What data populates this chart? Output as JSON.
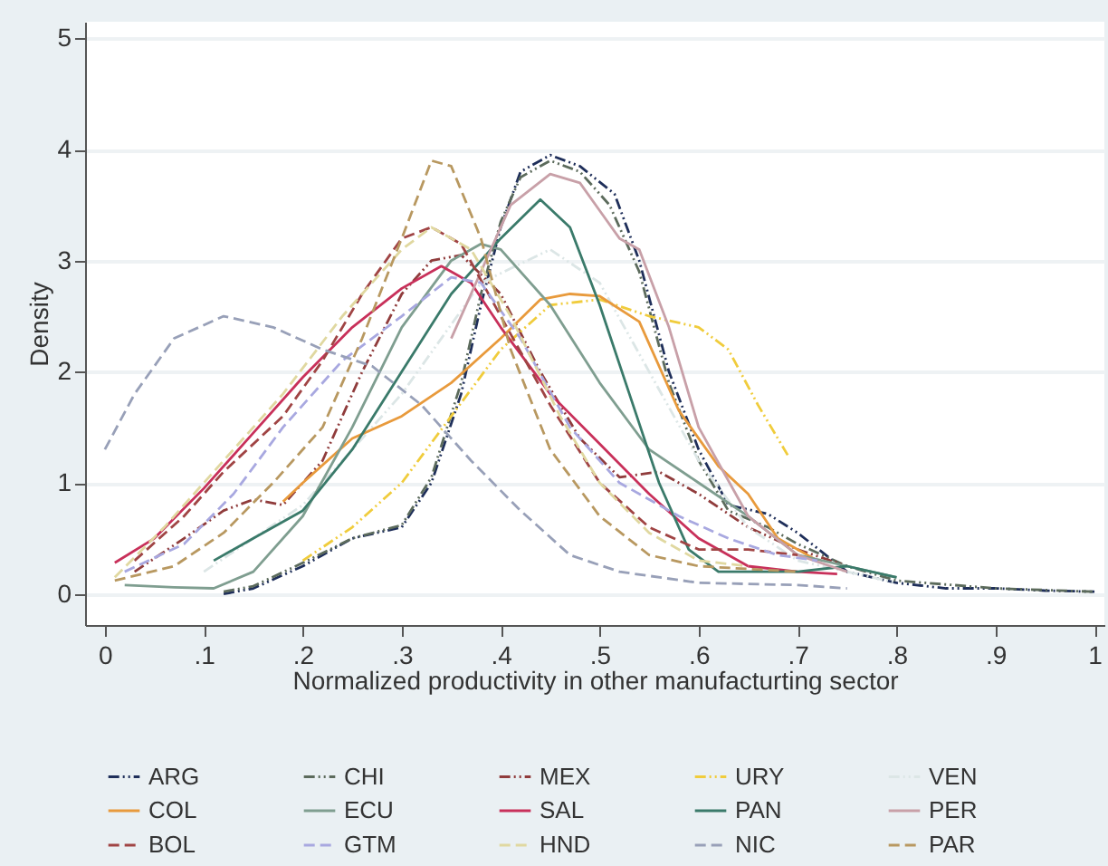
{
  "chart_data": {
    "type": "line",
    "xlabel": "Normalized productivity in other manufacturting sector",
    "ylabel": "Density",
    "xlim": [
      -0.02,
      1.01
    ],
    "ylim": [
      -0.28,
      5.15
    ],
    "xticks": [
      0,
      {
        "value": 0.1,
        "label": ".1"
      },
      {
        "value": 0.2,
        "label": ".2"
      },
      {
        "value": 0.3,
        "label": ".3"
      },
      {
        "value": 0.4,
        "label": ".4"
      },
      {
        "value": 0.5,
        "label": ".5"
      },
      {
        "value": 0.6,
        "label": ".6"
      },
      {
        "value": 0.7,
        "label": ".7"
      },
      {
        "value": 0.8,
        "label": ".8"
      },
      {
        "value": 0.9,
        "label": ".9"
      },
      1
    ],
    "yticks": [
      0,
      1,
      2,
      3,
      4,
      5
    ],
    "grid": "y",
    "legend": "bottom",
    "series": [
      {
        "name": "ARG",
        "color": "#1f2f5a",
        "line_style": "dotted",
        "x": [
          0.12,
          0.15,
          0.2,
          0.25,
          0.3,
          0.33,
          0.36,
          0.38,
          0.4,
          0.42,
          0.45,
          0.48,
          0.515,
          0.54,
          0.57,
          0.6,
          0.63,
          0.67,
          0.7,
          0.75,
          0.8,
          0.85,
          0.9,
          0.95,
          1.0
        ],
        "values": [
          0,
          0.05,
          0.25,
          0.5,
          0.6,
          1.0,
          1.8,
          2.6,
          3.3,
          3.8,
          3.95,
          3.85,
          3.6,
          3.0,
          2.0,
          1.3,
          0.8,
          0.72,
          0.55,
          0.2,
          0.1,
          0.05,
          0.05,
          0.03,
          0.02
        ]
      },
      {
        "name": "CHI",
        "color": "#5c6b5c",
        "line_style": "dotted",
        "x": [
          0.12,
          0.15,
          0.2,
          0.25,
          0.3,
          0.33,
          0.36,
          0.38,
          0.4,
          0.42,
          0.45,
          0.48,
          0.51,
          0.54,
          0.57,
          0.6,
          0.63,
          0.67,
          0.7,
          0.75,
          0.8,
          0.9,
          1.0
        ],
        "values": [
          0.02,
          0.07,
          0.28,
          0.5,
          0.62,
          1.05,
          1.9,
          2.7,
          3.35,
          3.75,
          3.9,
          3.8,
          3.5,
          2.9,
          1.9,
          1.2,
          0.75,
          0.6,
          0.45,
          0.25,
          0.12,
          0.05,
          0.02
        ]
      },
      {
        "name": "MEX",
        "color": "#903c3c",
        "line_style": "dotted",
        "x": [
          0.03,
          0.08,
          0.12,
          0.15,
          0.18,
          0.22,
          0.26,
          0.3,
          0.33,
          0.36,
          0.4,
          0.44,
          0.48,
          0.52,
          0.56,
          0.6,
          0.65,
          0.7,
          0.75
        ],
        "values": [
          0.2,
          0.5,
          0.75,
          0.85,
          0.8,
          1.2,
          2.0,
          2.7,
          3.0,
          3.05,
          2.7,
          2.0,
          1.4,
          1.05,
          1.1,
          0.9,
          0.6,
          0.4,
          0.25
        ]
      },
      {
        "name": "URY",
        "color": "#f0cc3c",
        "line_style": "dotted",
        "x": [
          0.2,
          0.25,
          0.3,
          0.35,
          0.4,
          0.45,
          0.5,
          0.55,
          0.6,
          0.63,
          0.66,
          0.69
        ],
        "values": [
          0.3,
          0.6,
          1.0,
          1.6,
          2.2,
          2.6,
          2.65,
          2.5,
          2.4,
          2.2,
          1.7,
          1.25
        ]
      },
      {
        "name": "VEN",
        "color": "#dce6e6",
        "line_style": "dotted",
        "x": [
          0.1,
          0.2,
          0.3,
          0.38,
          0.45,
          0.5,
          0.55,
          0.6,
          0.65,
          0.7,
          0.8
        ],
        "values": [
          0.2,
          0.8,
          1.8,
          2.8,
          3.1,
          2.8,
          2.0,
          1.2,
          0.6,
          0.3,
          0.1
        ]
      },
      {
        "name": "COL",
        "color": "#e89a3c",
        "line_style": "solid",
        "x": [
          0.18,
          0.2,
          0.25,
          0.3,
          0.35,
          0.4,
          0.44,
          0.47,
          0.5,
          0.54,
          0.58,
          0.62,
          0.65,
          0.68,
          0.72
        ],
        "values": [
          0.83,
          1.0,
          1.4,
          1.6,
          1.9,
          2.3,
          2.65,
          2.7,
          2.68,
          2.45,
          1.65,
          1.15,
          0.9,
          0.5,
          0.3
        ]
      },
      {
        "name": "ECU",
        "color": "#7f9e90",
        "line_style": "solid",
        "x": [
          0.02,
          0.07,
          0.11,
          0.15,
          0.2,
          0.25,
          0.3,
          0.35,
          0.38,
          0.4,
          0.45,
          0.5,
          0.55,
          0.6,
          0.65,
          0.7,
          0.75,
          0.8
        ],
        "values": [
          0.08,
          0.06,
          0.05,
          0.2,
          0.7,
          1.5,
          2.4,
          3.0,
          3.15,
          3.1,
          2.6,
          1.9,
          1.3,
          1.0,
          0.7,
          0.35,
          0.25,
          0.15
        ]
      },
      {
        "name": "SAL",
        "color": "#c8305a",
        "line_style": "solid",
        "x": [
          0.01,
          0.05,
          0.1,
          0.15,
          0.2,
          0.25,
          0.3,
          0.34,
          0.37,
          0.4,
          0.45,
          0.5,
          0.55,
          0.6,
          0.65,
          0.7,
          0.74
        ],
        "values": [
          0.28,
          0.5,
          0.95,
          1.45,
          1.95,
          2.4,
          2.75,
          2.95,
          2.8,
          2.4,
          1.8,
          1.35,
          0.9,
          0.5,
          0.25,
          0.2,
          0.18
        ]
      },
      {
        "name": "PAN",
        "color": "#3a7a6a",
        "line_style": "solid",
        "x": [
          0.11,
          0.15,
          0.2,
          0.25,
          0.3,
          0.35,
          0.4,
          0.44,
          0.47,
          0.5,
          0.53,
          0.56,
          0.59,
          0.62,
          0.7,
          0.75,
          0.8
        ],
        "values": [
          0.3,
          0.5,
          0.75,
          1.3,
          2.0,
          2.7,
          3.2,
          3.55,
          3.3,
          2.6,
          1.8,
          1.0,
          0.4,
          0.2,
          0.2,
          0.25,
          0.15
        ]
      },
      {
        "name": "PER",
        "color": "#c8a0a8",
        "line_style": "solid",
        "x": [
          0.35,
          0.38,
          0.41,
          0.45,
          0.48,
          0.5,
          0.52,
          0.54,
          0.57,
          0.6,
          0.65,
          0.7,
          0.75
        ],
        "values": [
          2.3,
          2.9,
          3.5,
          3.78,
          3.7,
          3.45,
          3.2,
          3.1,
          2.4,
          1.5,
          0.7,
          0.35,
          0.2
        ]
      },
      {
        "name": "BOL",
        "color": "#a04444",
        "line_style": "dashed",
        "x": [
          0.03,
          0.08,
          0.12,
          0.18,
          0.22,
          0.26,
          0.3,
          0.33,
          0.36,
          0.4,
          0.45,
          0.5,
          0.55,
          0.6,
          0.65,
          0.7
        ],
        "values": [
          0.3,
          0.7,
          1.1,
          1.6,
          2.1,
          2.7,
          3.2,
          3.3,
          3.15,
          2.5,
          1.7,
          1.0,
          0.6,
          0.4,
          0.4,
          0.35
        ]
      },
      {
        "name": "GTM",
        "color": "#a8a8e0",
        "line_style": "dashed",
        "x": [
          0.02,
          0.08,
          0.13,
          0.18,
          0.24,
          0.3,
          0.35,
          0.38,
          0.42,
          0.47,
          0.52,
          0.58,
          0.63,
          0.68,
          0.72
        ],
        "values": [
          0.2,
          0.45,
          0.9,
          1.5,
          2.1,
          2.5,
          2.85,
          2.8,
          2.3,
          1.5,
          1.0,
          0.7,
          0.5,
          0.35,
          0.3
        ]
      },
      {
        "name": "HND",
        "color": "#e0d8a0",
        "line_style": "dashed",
        "x": [
          0.01,
          0.06,
          0.12,
          0.18,
          0.24,
          0.3,
          0.33,
          0.37,
          0.41,
          0.46,
          0.5,
          0.55,
          0.6,
          0.65
        ],
        "values": [
          0.15,
          0.6,
          1.2,
          1.8,
          2.5,
          3.1,
          3.3,
          3.1,
          2.5,
          1.6,
          1.0,
          0.55,
          0.3,
          0.25
        ]
      },
      {
        "name": "NIC",
        "color": "#98a0b8",
        "line_style": "dashed",
        "x": [
          0.0,
          0.03,
          0.07,
          0.12,
          0.17,
          0.22,
          0.27,
          0.32,
          0.37,
          0.42,
          0.47,
          0.52,
          0.6,
          0.7,
          0.75
        ],
        "values": [
          1.3,
          1.8,
          2.3,
          2.5,
          2.4,
          2.2,
          2.05,
          1.7,
          1.2,
          0.75,
          0.35,
          0.2,
          0.1,
          0.08,
          0.05
        ]
      },
      {
        "name": "PAR",
        "color": "#b89860",
        "line_style": "dashed",
        "x": [
          0.01,
          0.07,
          0.12,
          0.17,
          0.22,
          0.26,
          0.3,
          0.33,
          0.35,
          0.38,
          0.41,
          0.45,
          0.5,
          0.55,
          0.6,
          0.7
        ],
        "values": [
          0.12,
          0.25,
          0.55,
          1.0,
          1.5,
          2.3,
          3.2,
          3.9,
          3.85,
          3.2,
          2.2,
          1.3,
          0.7,
          0.35,
          0.25,
          0.2
        ]
      }
    ]
  }
}
